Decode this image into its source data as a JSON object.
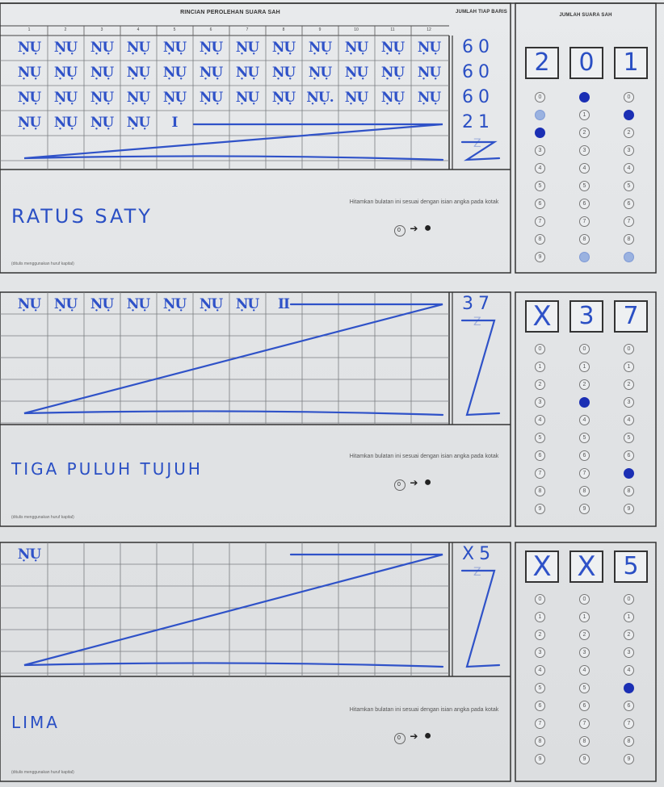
{
  "header": {
    "title": "RINCIAN PEROLEHAN SUARA SAH",
    "row_total_label": "JUMLAH TIAP BARIS",
    "total_label": "JUMLAH SUARA SAH",
    "columns": [
      "1",
      "2",
      "3",
      "4",
      "5",
      "6",
      "7",
      "8",
      "9",
      "10",
      "11",
      "12"
    ]
  },
  "sections": [
    {
      "tally_rows": [
        [
          "ṆỤ",
          "ṆỤ",
          "ṆỤ",
          "ṆỤ",
          "ṆỤ",
          "ṆỤ",
          "ṆỤ",
          "ṆỤ",
          "ṆỤ",
          "ṆỤ",
          "ṆỤ",
          "ṆỤ"
        ],
        [
          "ṆỤ",
          "ṆỤ",
          "ṆỤ",
          "ṆỤ",
          "ṆỤ",
          "ṆỤ",
          "ṆỤ",
          "ṆỤ",
          "ṆỤ",
          "ṆỤ",
          "ṆỤ",
          "ṆỤ"
        ],
        [
          "ṆỤ",
          "ṆỤ",
          "ṆỤ",
          "ṆỤ",
          "ṆỤ",
          "ṆỤ",
          "ṆỤ",
          "ṆỤ",
          "ṆỤ.",
          "ṆỤ",
          "ṆỤ",
          "ṆỤ"
        ],
        [
          "ṆỤ",
          "ṆỤ",
          "ṆỤ",
          "ṆỤ",
          "I",
          "",
          "",
          "",
          "",
          "",
          "",
          ""
        ]
      ],
      "row_totals": [
        "60",
        "60",
        "60",
        "21",
        "Z"
      ],
      "total_digits": [
        "2",
        "0",
        "1"
      ],
      "filled": [
        2,
        0,
        1
      ],
      "words": "RATUS  SATY",
      "instruction": "Hitamkan bulatan ini sesuai dengan isian angka pada kotak",
      "note": "(ditulis menggunakan huruf kapital)"
    },
    {
      "tally_rows": [
        [
          "ṆỤ",
          "ṆỤ",
          "ṆỤ",
          "ṆỤ",
          "ṆỤ",
          "ṆỤ",
          "ṆỤ",
          "II",
          "",
          "",
          "",
          ""
        ]
      ],
      "row_totals": [
        "37",
        "Z"
      ],
      "total_digits": [
        "X",
        "3",
        "7"
      ],
      "filled": [
        null,
        3,
        7
      ],
      "words": "TIGA  PULUH TUJUH",
      "instruction": "Hitamkan bulatan ini sesuai dengan isian angka pada kotak",
      "note": "(ditulis menggunakan huruf kapital)"
    },
    {
      "tally_rows": [
        [
          "ṆỤ",
          "",
          "",
          "",
          "",
          "",
          "",
          "",
          "",
          "",
          "",
          ""
        ]
      ],
      "row_totals": [
        "X5",
        "Z"
      ],
      "total_digits": [
        "X",
        "X",
        "5"
      ],
      "filled": [
        null,
        null,
        5
      ],
      "words": "LIMA",
      "instruction": "Hitamkan bulatan ini sesuai dengan isian angka pada kotak",
      "note": "(ditulis menggunakan huruf kapital)"
    }
  ],
  "bubble_digits": [
    "0",
    "1",
    "2",
    "3",
    "4",
    "5",
    "6",
    "7",
    "8",
    "9"
  ],
  "legend": {
    "from": "0",
    "to": "●"
  }
}
